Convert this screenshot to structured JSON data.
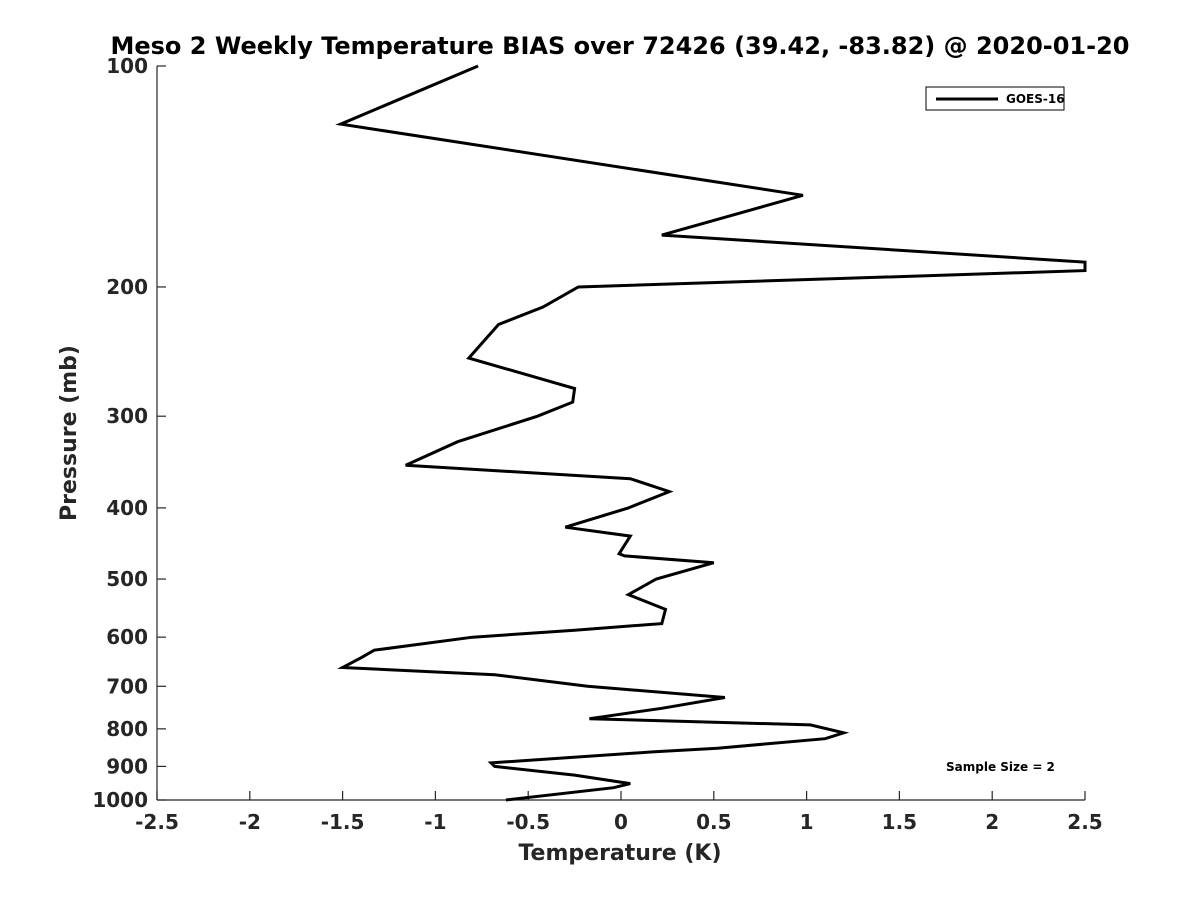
{
  "chart_data": {
    "type": "line",
    "title": "Meso 2 Weekly Temperature BIAS over 72426 (39.42, -83.82) @ 2020-01-20",
    "xlabel": "Temperature (K)",
    "ylabel": "Pressure (mb)",
    "xlim": [
      -2.5,
      2.5
    ],
    "ylim": [
      1000,
      100
    ],
    "y_scale": "log",
    "x_ticks": [
      -2.5,
      -2,
      -1.5,
      -1,
      -0.5,
      0,
      0.5,
      1,
      1.5,
      2,
      2.5
    ],
    "x_tick_labels": [
      "-2.5",
      "-2",
      "-1.5",
      "-1",
      "-0.5",
      "0",
      "0.5",
      "1",
      "1.5",
      "2",
      "2.5"
    ],
    "y_ticks": [
      100,
      200,
      300,
      400,
      500,
      600,
      700,
      800,
      900,
      1000
    ],
    "y_tick_labels": [
      "100",
      "200",
      "300",
      "400",
      "500",
      "600",
      "700",
      "800",
      "900",
      "1000"
    ],
    "grid": false,
    "legend_position": "top-right",
    "annotation": "Sample Size = 2",
    "series": [
      {
        "name": "GOES-16",
        "color": "#000000",
        "points": [
          {
            "t": -0.77,
            "p": 100
          },
          {
            "t": -1.51,
            "p": 120
          },
          {
            "t": 0.98,
            "p": 150
          },
          {
            "t": 0.22,
            "p": 170
          },
          {
            "t": 2.5,
            "p": 185
          },
          {
            "t": 2.5,
            "p": 190
          },
          {
            "t": -0.23,
            "p": 200
          },
          {
            "t": -0.42,
            "p": 213
          },
          {
            "t": -0.66,
            "p": 225
          },
          {
            "t": -0.82,
            "p": 250
          },
          {
            "t": -0.25,
            "p": 275
          },
          {
            "t": -0.26,
            "p": 287
          },
          {
            "t": -0.45,
            "p": 300
          },
          {
            "t": -0.88,
            "p": 325
          },
          {
            "t": -1.16,
            "p": 350
          },
          {
            "t": 0.05,
            "p": 365
          },
          {
            "t": 0.26,
            "p": 380
          },
          {
            "t": 0.04,
            "p": 400
          },
          {
            "t": -0.3,
            "p": 425
          },
          {
            "t": 0.05,
            "p": 437
          },
          {
            "t": -0.01,
            "p": 462
          },
          {
            "t": 0.02,
            "p": 465
          },
          {
            "t": 0.5,
            "p": 475
          },
          {
            "t": 0.19,
            "p": 500
          },
          {
            "t": 0.04,
            "p": 525
          },
          {
            "t": 0.24,
            "p": 550
          },
          {
            "t": 0.22,
            "p": 575
          },
          {
            "t": -0.25,
            "p": 587
          },
          {
            "t": -0.8,
            "p": 600
          },
          {
            "t": -1.33,
            "p": 625
          },
          {
            "t": -1.4,
            "p": 640
          },
          {
            "t": -1.5,
            "p": 660
          },
          {
            "t": -0.68,
            "p": 675
          },
          {
            "t": -0.18,
            "p": 700
          },
          {
            "t": 0.56,
            "p": 725
          },
          {
            "t": 0.22,
            "p": 750
          },
          {
            "t": -0.17,
            "p": 775
          },
          {
            "t": 1.02,
            "p": 790
          },
          {
            "t": 1.2,
            "p": 810
          },
          {
            "t": 1.1,
            "p": 825
          },
          {
            "t": 0.52,
            "p": 850
          },
          {
            "t": 0.17,
            "p": 860
          },
          {
            "t": -0.7,
            "p": 890
          },
          {
            "t": -0.68,
            "p": 900
          },
          {
            "t": -0.25,
            "p": 925
          },
          {
            "t": 0.05,
            "p": 950
          },
          {
            "t": -0.04,
            "p": 962
          },
          {
            "t": -0.62,
            "p": 1000
          }
        ]
      }
    ]
  }
}
